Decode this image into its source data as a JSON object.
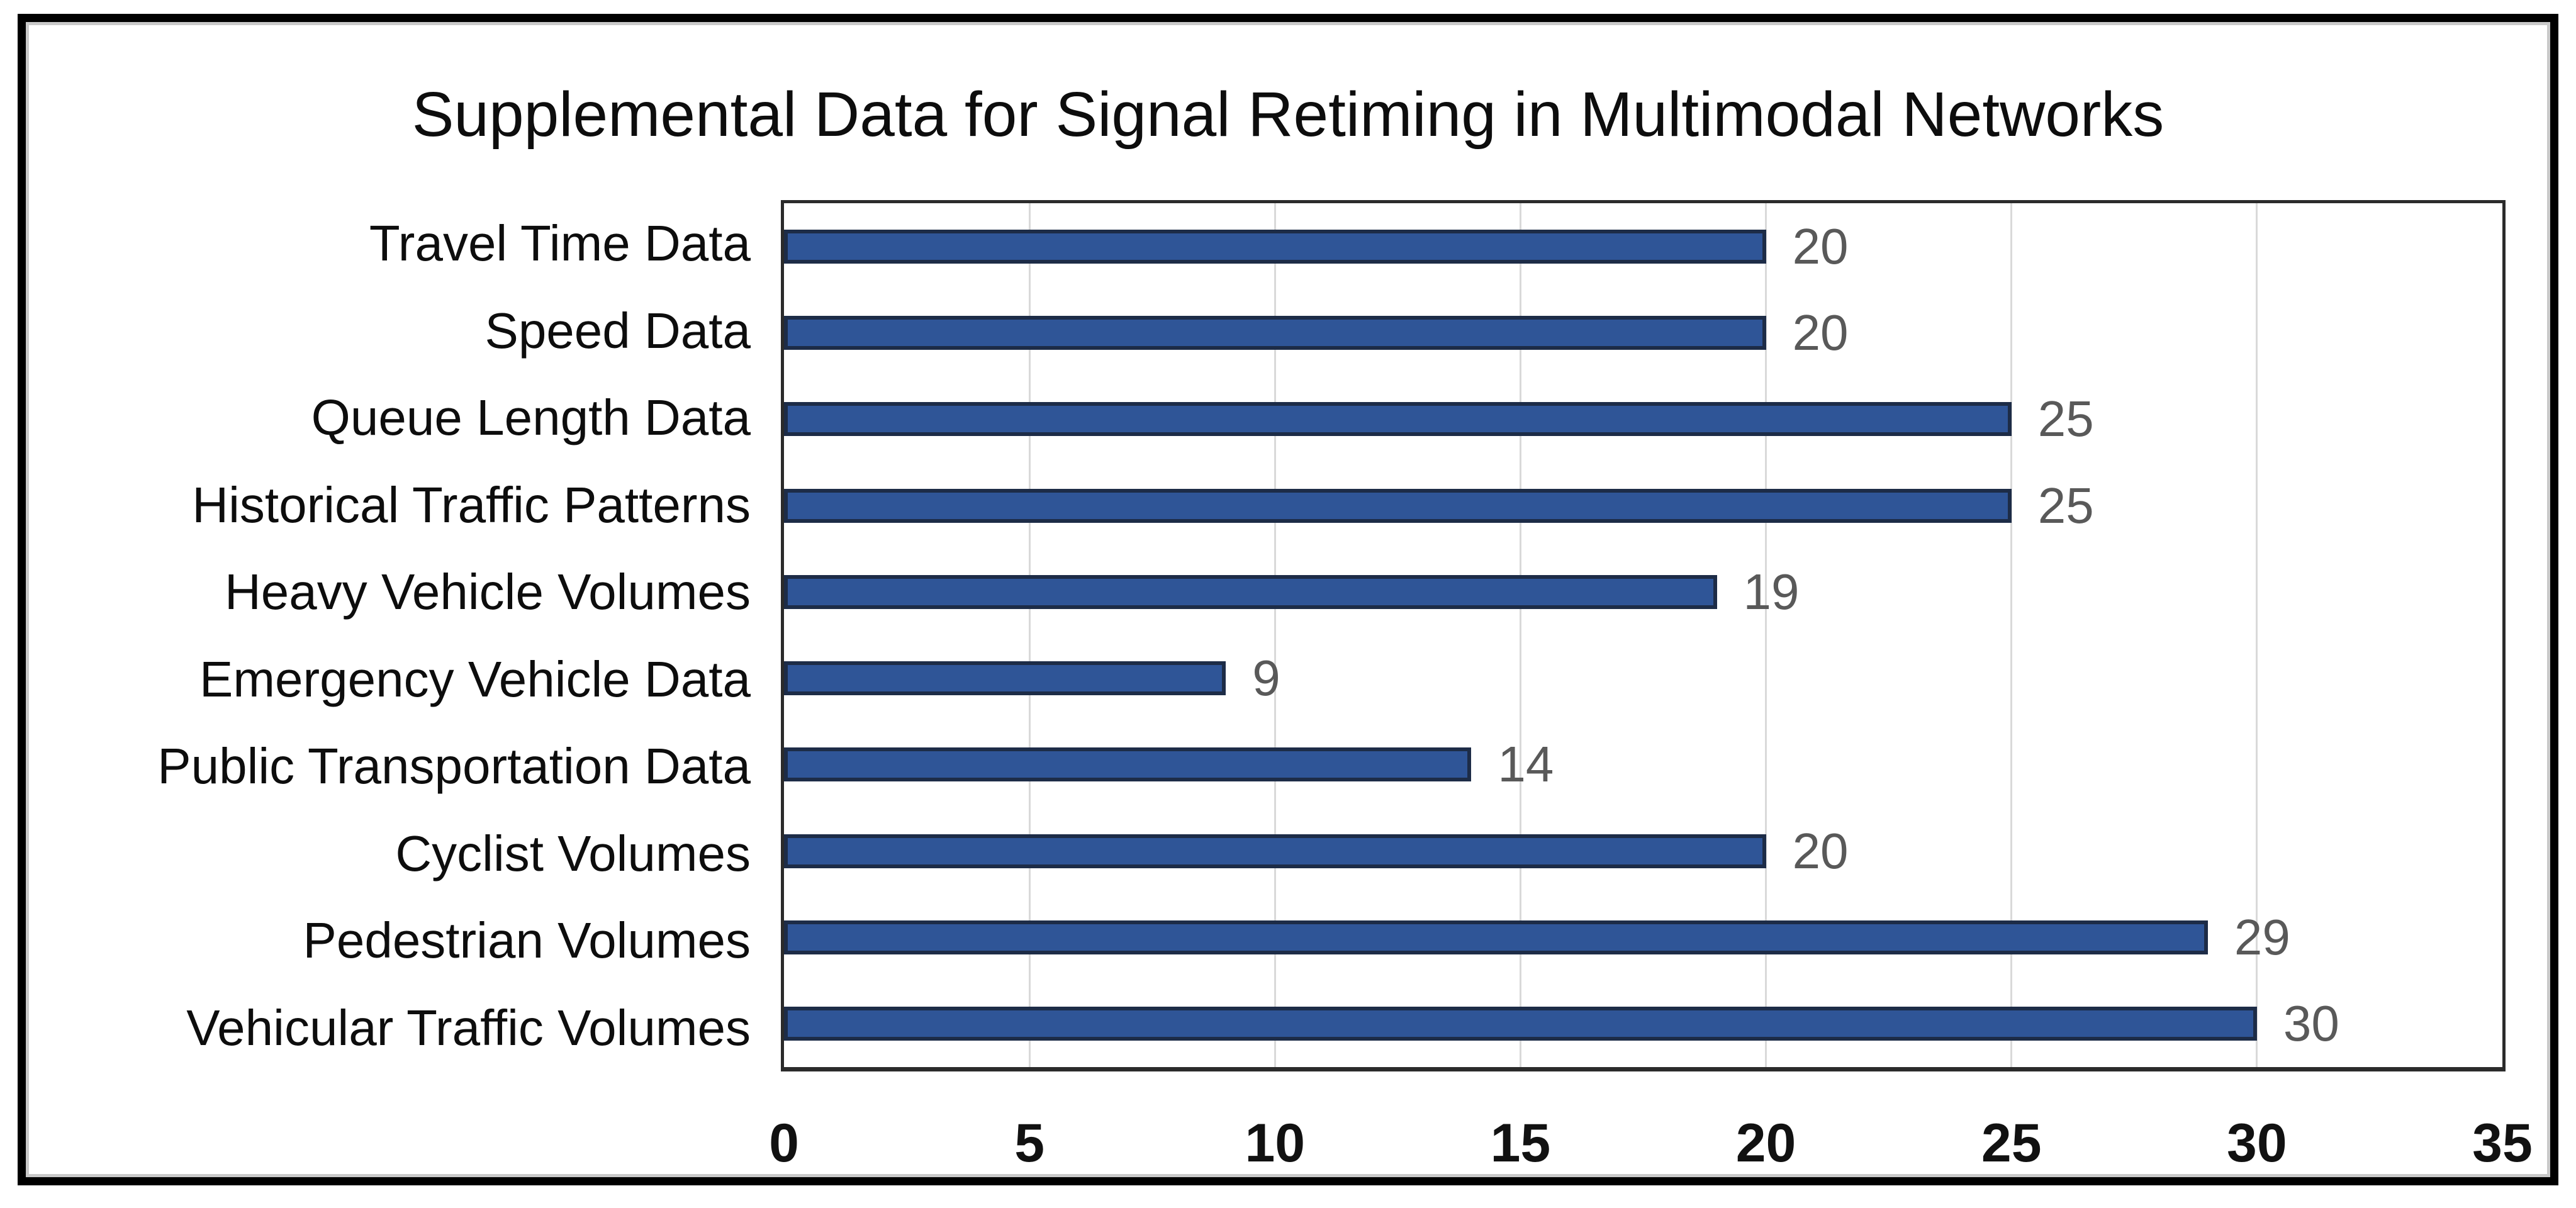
{
  "title": "Supplemental Data for Signal Retiming in Multimodal Networks",
  "chart_data": {
    "type": "bar",
    "orientation": "horizontal",
    "title": "Supplemental Data for Signal Retiming in Multimodal Networks",
    "categories_top_to_bottom": [
      "Travel Time Data",
      "Speed Data",
      "Queue Length Data",
      "Historical Traffic Patterns",
      "Heavy Vehicle Volumes",
      "Emergency Vehicle Data",
      "Public Transportation Data",
      "Cyclist Volumes",
      "Pedestrian Volumes",
      "Vehicular Traffic Volumes"
    ],
    "values": [
      20,
      20,
      25,
      25,
      19,
      9,
      14,
      20,
      29,
      30
    ],
    "data_labels": [
      "20",
      "20",
      "25",
      "25",
      "19",
      "9",
      "14",
      "20",
      "29",
      "30"
    ],
    "xlabel": "",
    "ylabel": "",
    "xlim": [
      0,
      35
    ],
    "x_ticks": [
      "0",
      "5",
      "10",
      "15",
      "20",
      "25",
      "30",
      "35"
    ],
    "x_tick_values": [
      0,
      5,
      10,
      15,
      20,
      25,
      30,
      35
    ],
    "grid": "vertical-gridlines-on",
    "legend": "none",
    "colors": {
      "bar_fill": "#2f5597",
      "bar_border": "#1d2c47",
      "gridline": "#d9d9d9",
      "plot_border": "#2b2b2b",
      "value_label": "#595959",
      "category_label": "#0d0d0d",
      "tick_label": "#111111",
      "figure_border": "#000000",
      "background": "#ffffff"
    }
  }
}
